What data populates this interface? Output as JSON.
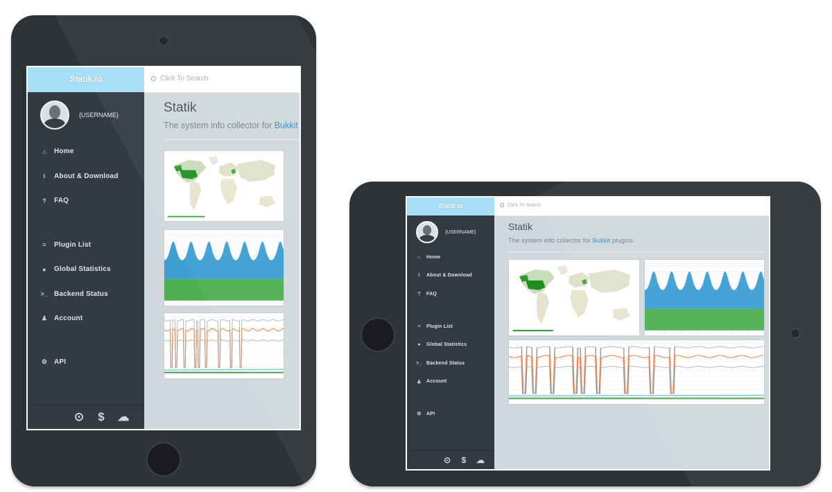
{
  "app": {
    "brand": "Statik.io",
    "search_placeholder": "Click To Search",
    "username": "{USERNAME}",
    "page_title": "Statik",
    "subtitle_pre": "The system info collector for ",
    "subtitle_link": "Bukkit",
    "subtitle_post": " plugins."
  },
  "menu": {
    "home": {
      "label": "Home",
      "icon": "home-icon"
    },
    "about": {
      "label": "About & Download",
      "icon": "info-icon"
    },
    "faq": {
      "label": "FAQ",
      "icon": "question-icon"
    },
    "plugins": {
      "label": "Plugin List",
      "icon": "list-icon"
    },
    "global": {
      "label": "Global Statistics",
      "icon": "globe-icon"
    },
    "backend": {
      "label": "Backend Status",
      "icon": "terminal-icon"
    },
    "account": {
      "label": "Account",
      "icon": "user-icon"
    },
    "api": {
      "label": "API",
      "icon": "gears-icon"
    }
  },
  "footer_icons": [
    "github-icon",
    "dollar-icon",
    "wechat-icon"
  ],
  "colors": {
    "brand_bg": "#a8dff8",
    "sidebar_bg": "#333b41",
    "content_bg": "#d1d8dd",
    "link": "#2f8fd3",
    "area_series_1": "#3d9fd4",
    "area_series_2": "#4caf50",
    "line_orange": "#f08a57",
    "line_gray": "#9a9a9a",
    "line_teal": "#4fc3c7"
  }
}
